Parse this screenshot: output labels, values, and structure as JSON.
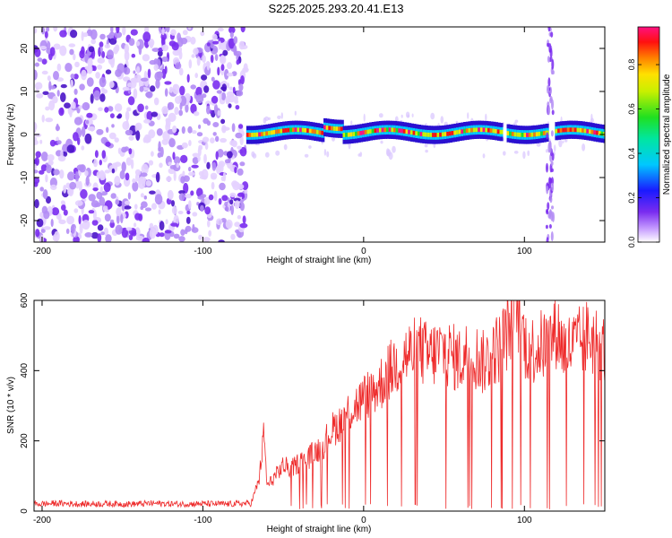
{
  "title": "S225.2025.293.20.41.E13",
  "colors": {
    "snr_line": "#ee2b2b",
    "noise_purple": "#7a2cf0",
    "spectral_band": "#00c8ff"
  },
  "chart_data": [
    {
      "type": "heatmap",
      "xlabel": "Height of straight line (km)",
      "ylabel": "Frequency (Hz)",
      "xlim": [
        -205,
        150
      ],
      "ylim": [
        -25,
        25
      ],
      "xticks": [
        -200,
        -100,
        0,
        100
      ],
      "yticks": [
        -20,
        -10,
        0,
        10,
        20
      ],
      "grid": false,
      "colorbar": {
        "label": "Normalized spectral amplitude",
        "range": [
          0,
          0.97
        ],
        "ticks": [
          0.0,
          0.2,
          0.4,
          0.6,
          0.8
        ],
        "colormap": "rainbow (white-violet-blue-cyan-green-yellow-red-magenta)"
      },
      "regions": [
        {
          "x_range": [
            -205,
            -73
          ],
          "description_type": "broadband noise",
          "amplitude_level": 0.15
        },
        {
          "x_range": [
            -73,
            150
          ],
          "description_type": "narrow band near 0 Hz",
          "center_hz": 0.5,
          "width_hz": 3,
          "amplitude_level": 0.45
        },
        {
          "x_range": [
            114,
            118
          ],
          "description_type": "vertical streak spanning full frequency range",
          "amplitude_level": 0.12
        }
      ]
    },
    {
      "type": "line",
      "xlabel": "Height of straight line (km)",
      "ylabel": "SNR (10 * v/v)",
      "xlim": [
        -205,
        150
      ],
      "ylim": [
        0,
        600
      ],
      "xticks": [
        -200,
        -100,
        0,
        100
      ],
      "yticks": [
        0,
        200,
        400,
        600
      ],
      "grid": false,
      "series": [
        {
          "x": [
            -205,
            -190,
            -175,
            -160,
            -145,
            -130,
            -115,
            -100,
            -85,
            -70,
            -65,
            -62,
            -60,
            -55,
            -50,
            -45,
            -40,
            -35,
            -30,
            -25,
            -20,
            -15,
            -10,
            -5,
            0,
            5,
            10,
            15,
            20,
            25,
            30,
            35,
            40,
            45,
            50,
            55,
            60,
            65,
            70,
            75,
            80,
            85,
            90,
            93,
            95,
            97,
            100,
            105,
            110,
            115,
            120,
            125,
            130,
            135,
            140,
            145,
            150
          ],
          "y": [
            20,
            22,
            20,
            21,
            20,
            22,
            20,
            21,
            20,
            22,
            90,
            220,
            70,
            100,
            130,
            120,
            140,
            150,
            170,
            190,
            230,
            250,
            280,
            300,
            320,
            340,
            360,
            390,
            420,
            440,
            450,
            460,
            440,
            450,
            460,
            440,
            430,
            450,
            440,
            420,
            450,
            470,
            520,
            560,
            600,
            560,
            480,
            460,
            470,
            480,
            520,
            460,
            470,
            480,
            500,
            480,
            460
          ]
        }
      ]
    }
  ]
}
